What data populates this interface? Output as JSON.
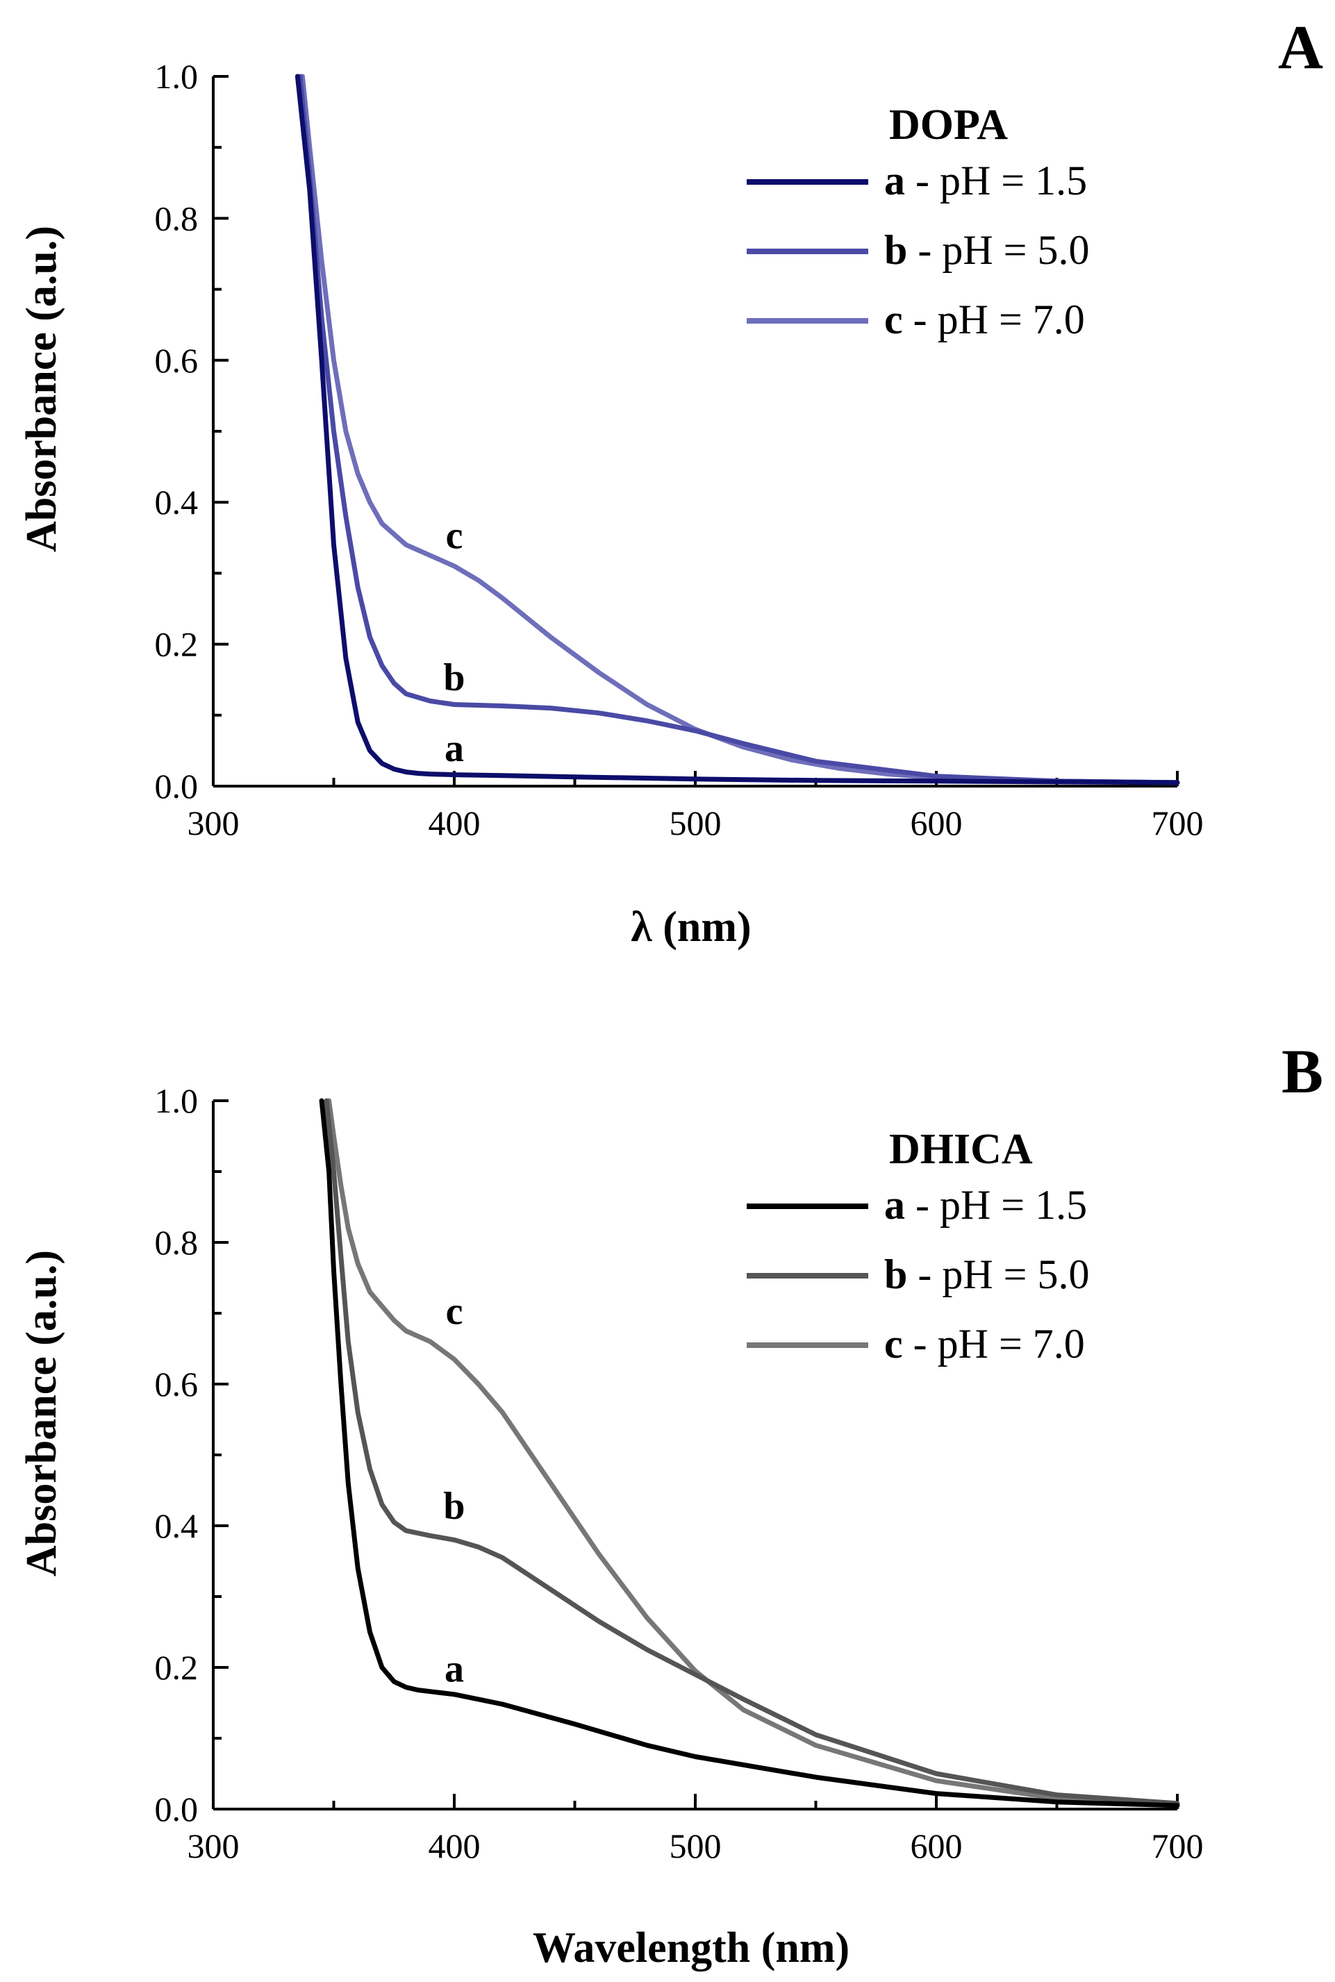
{
  "chart_data": [
    {
      "panel": "A",
      "type": "line",
      "title": "DOPA",
      "xlabel": "λ (nm)",
      "ylabel": "Absorbance (a.u.)",
      "xlim": [
        300,
        700
      ],
      "ylim": [
        0.0,
        1.0
      ],
      "xticks": [
        "300",
        "400",
        "500",
        "600",
        "700"
      ],
      "yticks": [
        "0.0",
        "0.2",
        "0.4",
        "0.6",
        "0.8",
        "1.0"
      ],
      "legend_position": "top-right",
      "series": [
        {
          "key": "a",
          "name": "pH = 1.5",
          "color": "#0d0d6b",
          "x": [
            335,
            340,
            345,
            350,
            355,
            360,
            365,
            370,
            375,
            380,
            385,
            390,
            400,
            420,
            450,
            500,
            550,
            600,
            650,
            700
          ],
          "y": [
            1.0,
            0.84,
            0.6,
            0.34,
            0.18,
            0.09,
            0.05,
            0.032,
            0.024,
            0.02,
            0.018,
            0.017,
            0.016,
            0.015,
            0.013,
            0.01,
            0.008,
            0.007,
            0.006,
            0.005
          ]
        },
        {
          "key": "b",
          "name": "pH = 5.0",
          "color": "#4a4aa6",
          "x": [
            336,
            340,
            345,
            350,
            355,
            360,
            365,
            370,
            375,
            380,
            390,
            400,
            420,
            440,
            460,
            480,
            500,
            520,
            550,
            600,
            650,
            700
          ],
          "y": [
            1.0,
            0.86,
            0.66,
            0.5,
            0.38,
            0.28,
            0.21,
            0.17,
            0.145,
            0.13,
            0.12,
            0.115,
            0.113,
            0.11,
            0.103,
            0.092,
            0.078,
            0.06,
            0.035,
            0.014,
            0.007,
            0.005
          ]
        },
        {
          "key": "c",
          "name": "pH = 7.0",
          "color": "#6e6eba",
          "x": [
            337,
            340,
            345,
            350,
            355,
            360,
            365,
            370,
            380,
            390,
            400,
            410,
            420,
            440,
            460,
            480,
            500,
            520,
            540,
            560,
            580,
            600,
            650,
            700
          ],
          "y": [
            1.0,
            0.9,
            0.74,
            0.6,
            0.5,
            0.44,
            0.4,
            0.37,
            0.34,
            0.325,
            0.31,
            0.29,
            0.265,
            0.21,
            0.16,
            0.115,
            0.08,
            0.055,
            0.037,
            0.025,
            0.017,
            0.012,
            0.007,
            0.005
          ]
        }
      ],
      "annotations": [
        {
          "text": "a",
          "x": 400,
          "y": 0.035
        },
        {
          "text": "b",
          "x": 400,
          "y": 0.135
        },
        {
          "text": "c",
          "x": 400,
          "y": 0.335
        }
      ]
    },
    {
      "panel": "B",
      "type": "line",
      "title": "DHICA",
      "xlabel": "Wavelength (nm)",
      "ylabel": "Absorbance (a.u.)",
      "xlim": [
        300,
        700
      ],
      "ylim": [
        0.0,
        1.0
      ],
      "xticks": [
        "300",
        "400",
        "500",
        "600",
        "700"
      ],
      "yticks": [
        "0.0",
        "0.2",
        "0.4",
        "0.6",
        "0.8",
        "1.0"
      ],
      "legend_position": "top-right",
      "series": [
        {
          "key": "a",
          "name": "pH = 1.5",
          "color": "#000000",
          "x": [
            345,
            348,
            350,
            353,
            356,
            360,
            365,
            370,
            375,
            380,
            385,
            390,
            400,
            420,
            450,
            480,
            500,
            550,
            600,
            650,
            700
          ],
          "y": [
            1.0,
            0.9,
            0.76,
            0.6,
            0.46,
            0.34,
            0.25,
            0.2,
            0.18,
            0.172,
            0.168,
            0.166,
            0.162,
            0.148,
            0.12,
            0.09,
            0.074,
            0.045,
            0.022,
            0.01,
            0.005
          ]
        },
        {
          "key": "b",
          "name": "pH = 5.0",
          "color": "#555555",
          "x": [
            347,
            350,
            353,
            356,
            360,
            365,
            370,
            375,
            380,
            390,
            400,
            410,
            420,
            440,
            460,
            480,
            500,
            520,
            550,
            600,
            650,
            700
          ],
          "y": [
            1.0,
            0.9,
            0.78,
            0.66,
            0.56,
            0.48,
            0.43,
            0.405,
            0.393,
            0.386,
            0.38,
            0.37,
            0.355,
            0.31,
            0.265,
            0.225,
            0.19,
            0.155,
            0.105,
            0.05,
            0.02,
            0.008
          ]
        },
        {
          "key": "c",
          "name": "pH = 7.0",
          "color": "#777777",
          "x": [
            348,
            350,
            353,
            356,
            360,
            365,
            370,
            375,
            380,
            390,
            400,
            410,
            420,
            440,
            460,
            480,
            500,
            520,
            550,
            600,
            650,
            700
          ],
          "y": [
            1.0,
            0.95,
            0.88,
            0.82,
            0.77,
            0.73,
            0.71,
            0.69,
            0.675,
            0.66,
            0.635,
            0.6,
            0.56,
            0.46,
            0.36,
            0.27,
            0.195,
            0.14,
            0.09,
            0.04,
            0.015,
            0.006
          ]
        }
      ],
      "annotations": [
        {
          "text": "a",
          "x": 400,
          "y": 0.18
        },
        {
          "text": "b",
          "x": 400,
          "y": 0.41
        },
        {
          "text": "c",
          "x": 400,
          "y": 0.685
        }
      ]
    }
  ]
}
